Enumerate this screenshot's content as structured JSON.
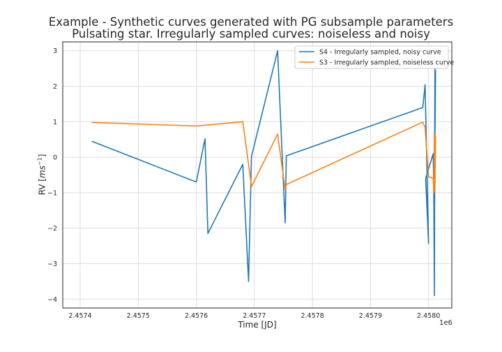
{
  "chart_data": {
    "type": "line",
    "title": "Example - Synthetic curves generated with PG subsample parameters",
    "subtitle": "Pulsating star. Irregularly sampled curves: noiseless and noisy",
    "xlabel": "Time [JD]",
    "ylabel_prefix": "RV [",
    "ylabel_math": "ms",
    "ylabel_exp": "−1",
    "ylabel_suffix": "]",
    "x_offset_text": "1e6",
    "xlim": [
      2.45737,
      2.45804
    ],
    "ylim": [
      -4.25,
      3.25
    ],
    "xticks": [
      2.4574,
      2.4575,
      2.4576,
      2.4577,
      2.4578,
      2.4579,
      2.458
    ],
    "xtick_labels": [
      "2.4574",
      "2.4575",
      "2.4576",
      "2.4577",
      "2.4578",
      "2.4579",
      "2.4580"
    ],
    "yticks": [
      -4,
      -3,
      -2,
      -1,
      0,
      1,
      2,
      3
    ],
    "ytick_labels": [
      "−4",
      "−3",
      "−2",
      "−1",
      "0",
      "1",
      "2",
      "3"
    ],
    "grid": true,
    "legend_position": "top-right",
    "series": [
      {
        "name": "S4 - Irregularly sampled, noisy curve",
        "color": "#1f77b4",
        "x": [
          2.45742,
          2.4576,
          2.457615,
          2.45762,
          2.45768,
          2.45769,
          2.457695,
          2.45774,
          2.457753,
          2.457755,
          2.45799,
          2.457994,
          2.458,
          2.457995,
          2.458008,
          2.458009,
          2.45801,
          2.458011,
          2.45801,
          2.458012
        ],
        "y": [
          0.45,
          -0.7,
          0.52,
          -2.15,
          -0.2,
          -3.5,
          0.02,
          3.0,
          -1.85,
          0.04,
          1.4,
          2.04,
          -2.43,
          -0.6,
          0.1,
          -1.0,
          -3.9,
          2.5,
          -1.3,
          2.45
        ]
      },
      {
        "name": "S3 - Irregularly sampled, noiseless curve",
        "color": "#ff7f0e",
        "x": [
          2.45742,
          2.4576,
          2.45768,
          2.45769,
          2.457695,
          2.45774,
          2.457753,
          2.457755,
          2.45799,
          2.457994,
          2.458,
          2.458008,
          2.458009,
          2.45801,
          2.458011,
          2.458012
        ],
        "y": [
          0.98,
          0.88,
          1.0,
          -0.2,
          -0.83,
          0.65,
          -0.9,
          -0.77,
          0.99,
          0.84,
          -0.55,
          -0.6,
          -1.0,
          0.65,
          -0.95,
          0.6
        ]
      }
    ]
  }
}
